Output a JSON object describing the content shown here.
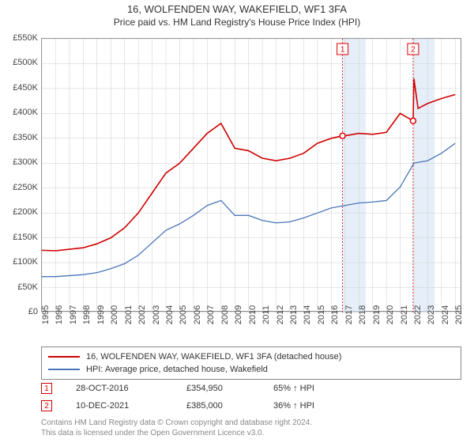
{
  "title": {
    "line1": "16, WOLFENDEN WAY, WAKEFIELD, WF1 3FA",
    "line2": "Price paid vs. HM Land Registry's House Price Index (HPI)"
  },
  "chart": {
    "type": "line",
    "background_color": "#ffffff",
    "border_color": "#888888",
    "grid_color": "#cccccc",
    "shade_color": "#d6e4f5",
    "shade_ranges": [
      [
        2016.82,
        2018.5
      ],
      [
        2021.94,
        2023.5
      ]
    ],
    "x": {
      "ticks": [
        1995,
        1996,
        1997,
        1998,
        1999,
        2000,
        2001,
        2002,
        2003,
        2004,
        2005,
        2006,
        2007,
        2008,
        2009,
        2010,
        2011,
        2012,
        2013,
        2014,
        2015,
        2016,
        2017,
        2018,
        2019,
        2020,
        2021,
        2022,
        2023,
        2024,
        2025
      ],
      "min": 1995,
      "max": 2025.5,
      "label_fontsize": 11
    },
    "y": {
      "ticks": [
        0,
        50000,
        100000,
        150000,
        200000,
        250000,
        300000,
        350000,
        400000,
        450000,
        500000,
        550000
      ],
      "tick_labels": [
        "£0",
        "£50K",
        "£100K",
        "£150K",
        "£200K",
        "£250K",
        "£300K",
        "£350K",
        "£400K",
        "£450K",
        "£500K",
        "£550K"
      ],
      "min": 0,
      "max": 550000,
      "label_fontsize": 11
    },
    "series": [
      {
        "name": "property",
        "label": "16, WOLFENDEN WAY, WAKEFIELD, WF1 3FA (detached house)",
        "color": "#d00000",
        "width": 1.6,
        "data": [
          [
            1995,
            125000
          ],
          [
            1996,
            124000
          ],
          [
            1997,
            127000
          ],
          [
            1998,
            130000
          ],
          [
            1999,
            138000
          ],
          [
            2000,
            150000
          ],
          [
            2001,
            170000
          ],
          [
            2002,
            200000
          ],
          [
            2003,
            240000
          ],
          [
            2004,
            280000
          ],
          [
            2005,
            300000
          ],
          [
            2006,
            330000
          ],
          [
            2007,
            360000
          ],
          [
            2008,
            380000
          ],
          [
            2009,
            330000
          ],
          [
            2010,
            325000
          ],
          [
            2011,
            310000
          ],
          [
            2012,
            305000
          ],
          [
            2013,
            310000
          ],
          [
            2014,
            320000
          ],
          [
            2015,
            340000
          ],
          [
            2016,
            350000
          ],
          [
            2016.82,
            354950
          ],
          [
            2017,
            355000
          ],
          [
            2018,
            360000
          ],
          [
            2019,
            358000
          ],
          [
            2020,
            362000
          ],
          [
            2021,
            400000
          ],
          [
            2021.94,
            385000
          ],
          [
            2022,
            470000
          ],
          [
            2022.3,
            410000
          ],
          [
            2023,
            420000
          ],
          [
            2024,
            430000
          ],
          [
            2025,
            438000
          ]
        ]
      },
      {
        "name": "hpi",
        "label": "HPI: Average price, detached house, Wakefield",
        "color": "#4a76b8",
        "width": 1.3,
        "data": [
          [
            1995,
            72000
          ],
          [
            1996,
            72000
          ],
          [
            1997,
            74000
          ],
          [
            1998,
            76000
          ],
          [
            1999,
            80000
          ],
          [
            2000,
            88000
          ],
          [
            2001,
            98000
          ],
          [
            2002,
            115000
          ],
          [
            2003,
            140000
          ],
          [
            2004,
            165000
          ],
          [
            2005,
            178000
          ],
          [
            2006,
            195000
          ],
          [
            2007,
            215000
          ],
          [
            2008,
            225000
          ],
          [
            2009,
            195000
          ],
          [
            2010,
            195000
          ],
          [
            2011,
            185000
          ],
          [
            2012,
            180000
          ],
          [
            2013,
            182000
          ],
          [
            2014,
            190000
          ],
          [
            2015,
            200000
          ],
          [
            2016,
            210000
          ],
          [
            2017,
            215000
          ],
          [
            2018,
            220000
          ],
          [
            2019,
            222000
          ],
          [
            2020,
            225000
          ],
          [
            2021,
            252000
          ],
          [
            2022,
            300000
          ],
          [
            2023,
            305000
          ],
          [
            2024,
            320000
          ],
          [
            2025,
            340000
          ]
        ]
      }
    ],
    "markers": [
      {
        "n": "1",
        "x": 2016.82,
        "y": 354950
      },
      {
        "n": "2",
        "x": 2021.94,
        "y": 385000
      }
    ]
  },
  "legend": {
    "rows": [
      {
        "color": "#d00000",
        "label_path": "chart.series.0.label"
      },
      {
        "color": "#4a76b8",
        "label_path": "chart.series.1.label"
      }
    ]
  },
  "sales": [
    {
      "n": "1",
      "date": "28-OCT-2016",
      "price": "£354,950",
      "pct": "65% ↑ HPI",
      "border": "#d00000"
    },
    {
      "n": "2",
      "date": "10-DEC-2021",
      "price": "£385,000",
      "pct": "36% ↑ HPI",
      "border": "#d00000"
    }
  ],
  "footer": {
    "line1": "Contains HM Land Registry data © Crown copyright and database right 2024.",
    "line2": "This data is licensed under the Open Government Licence v3.0."
  }
}
